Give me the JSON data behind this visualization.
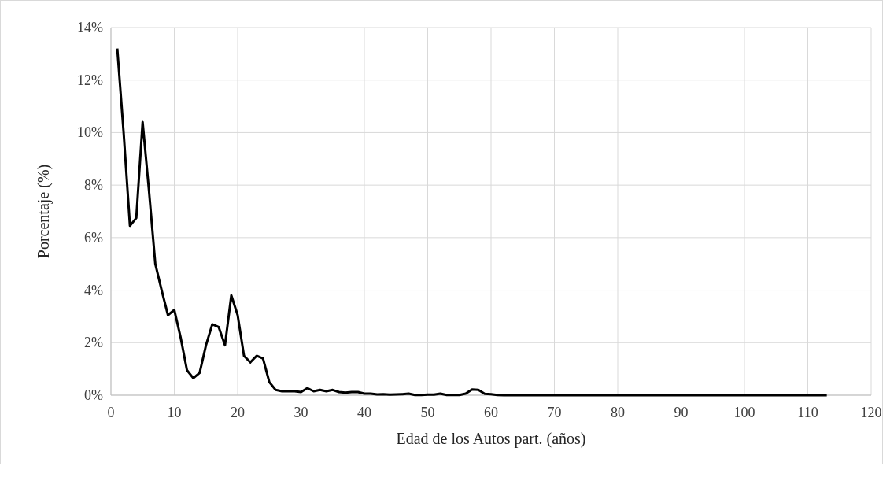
{
  "chart_data": {
    "type": "line",
    "xlabel": "Edad de los Autos part. (años)",
    "ylabel": "Porcentaje (%)",
    "x": [
      1,
      2,
      3,
      4,
      5,
      6,
      7,
      8,
      9,
      10,
      11,
      12,
      13,
      14,
      15,
      16,
      17,
      18,
      19,
      20,
      21,
      22,
      23,
      24,
      25,
      26,
      27,
      28,
      29,
      30,
      31,
      32,
      33,
      34,
      35,
      36,
      37,
      38,
      39,
      40,
      41,
      42,
      43,
      44,
      45,
      46,
      47,
      48,
      49,
      50,
      51,
      52,
      53,
      54,
      55,
      56,
      57,
      58,
      59,
      60,
      61,
      62,
      63,
      64,
      65,
      66,
      67,
      68,
      69,
      70,
      71,
      72,
      73,
      74,
      75,
      76,
      77,
      78,
      79,
      80,
      81,
      82,
      83,
      84,
      85,
      86,
      87,
      88,
      89,
      90,
      91,
      92,
      93,
      94,
      95,
      96,
      97,
      98,
      99,
      100,
      101,
      102,
      103,
      104,
      105,
      106,
      107,
      108,
      109,
      110,
      111,
      112,
      113
    ],
    "series": [
      {
        "color": "#000000",
        "values": [
          13.2,
          10.0,
          6.45,
          6.75,
          10.4,
          7.8,
          5.0,
          4.0,
          3.05,
          3.25,
          2.2,
          0.95,
          0.65,
          0.85,
          1.9,
          2.7,
          2.6,
          1.9,
          3.8,
          3.05,
          1.5,
          1.25,
          1.5,
          1.4,
          0.5,
          0.2,
          0.15,
          0.15,
          0.15,
          0.12,
          0.27,
          0.15,
          0.2,
          0.15,
          0.2,
          0.12,
          0.1,
          0.12,
          0.12,
          0.06,
          0.06,
          0.03,
          0.04,
          0.02,
          0.03,
          0.04,
          0.06,
          0.01,
          0.01,
          0.02,
          0.02,
          0.06,
          0.01,
          0.01,
          0.01,
          0.06,
          0.22,
          0.2,
          0.05,
          0.04,
          0.01,
          0,
          0,
          0,
          0,
          0,
          0,
          0,
          0,
          0,
          0,
          0,
          0,
          0,
          0,
          0,
          0,
          0,
          0,
          0,
          0,
          0,
          0,
          0,
          0,
          0,
          0,
          0,
          0,
          0,
          0,
          0,
          0,
          0,
          0,
          0,
          0,
          0,
          0,
          0,
          0,
          0,
          0,
          0,
          0,
          0,
          0,
          0,
          0,
          0,
          0,
          0,
          0
        ]
      }
    ],
    "xlim": [
      0,
      120
    ],
    "xticks": [
      0,
      10,
      20,
      30,
      40,
      50,
      60,
      70,
      80,
      90,
      100,
      110,
      120
    ],
    "ylim": [
      0,
      14
    ],
    "yticks": [
      {
        "value": 0,
        "label": "0%"
      },
      {
        "value": 2,
        "label": "2%"
      },
      {
        "value": 4,
        "label": "4%"
      },
      {
        "value": 6,
        "label": "6%"
      },
      {
        "value": 8,
        "label": "8%"
      },
      {
        "value": 10,
        "label": "10%"
      },
      {
        "value": 12,
        "label": "12%"
      },
      {
        "value": 14,
        "label": "14%"
      }
    ],
    "grid": true,
    "marker": "none",
    "line_style": "solid"
  }
}
